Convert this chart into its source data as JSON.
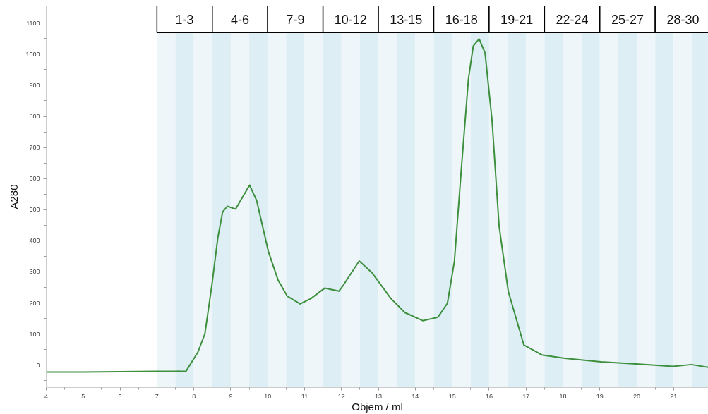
{
  "chart_data": {
    "type": "line",
    "xlabel": "Objem / ml",
    "ylabel": "A280",
    "xlim": [
      4,
      21.94
    ],
    "ylim": [
      -72,
      1155
    ],
    "xticks": [
      4,
      5,
      6,
      7,
      8,
      9,
      10,
      11,
      12,
      13,
      14,
      15,
      16,
      17,
      18,
      19,
      20,
      21
    ],
    "yticks": [
      0,
      100,
      200,
      300,
      400,
      500,
      600,
      700,
      800,
      900,
      1000,
      1100
    ],
    "grid": false,
    "marker": "none",
    "line_style": "solid",
    "series": [
      {
        "color": "#3d8f3d",
        "x": [
          4,
          5,
          6,
          7,
          7.5,
          7.79,
          8.11,
          8.3,
          8.49,
          8.65,
          8.78,
          8.91,
          9.13,
          9.51,
          9.7,
          10.02,
          10.28,
          10.53,
          10.88,
          11.17,
          11.55,
          11.93,
          12.06,
          12.48,
          12.83,
          13.34,
          13.72,
          14.2,
          14.61,
          14.87,
          15.06,
          15.25,
          15.44,
          15.57,
          15.73,
          15.89,
          16.08,
          16.27,
          16.52,
          16.94,
          17.43,
          18.05,
          19.03,
          20.13,
          20.98,
          21.48,
          21.94
        ],
        "values": [
          -22,
          -22,
          -21,
          -20,
          -20,
          -19,
          42,
          101,
          259,
          410,
          493,
          511,
          502,
          579,
          530,
          365,
          274,
          222,
          197,
          214,
          248,
          238,
          259,
          335,
          297,
          214,
          169,
          143,
          154,
          199,
          335,
          635,
          921,
          1026,
          1049,
          1004,
          786,
          447,
          237,
          65,
          33,
          22,
          11,
          3,
          -4,
          2,
          -7
        ]
      }
    ],
    "bands": [
      {
        "axis": "x",
        "from": 7,
        "to": 8.5,
        "label": "1-3",
        "color": "#ffffff"
      },
      {
        "axis": "x",
        "from": 8.5,
        "to": 10,
        "label": "4-6",
        "color": "#ffffff"
      },
      {
        "axis": "x",
        "from": 10,
        "to": 11.5,
        "label": "7-9",
        "color": "#ffffff"
      },
      {
        "axis": "x",
        "from": 11.5,
        "to": 13,
        "label": "10-12",
        "color": "#ffffff"
      },
      {
        "axis": "x",
        "from": 13,
        "to": 14.5,
        "label": "13-15",
        "color": "#ffffff"
      },
      {
        "axis": "x",
        "from": 14.5,
        "to": 16,
        "label": "16-18",
        "color": "#ffffff"
      },
      {
        "axis": "x",
        "from": 16,
        "to": 17.5,
        "label": "19-21",
        "color": "#ffffff"
      },
      {
        "axis": "x",
        "from": 17.5,
        "to": 19,
        "label": "22-24",
        "color": "#ffffff"
      },
      {
        "axis": "x",
        "from": 19,
        "to": 20.5,
        "label": "25-27",
        "color": "#ffffff"
      },
      {
        "axis": "x",
        "from": 20.5,
        "to": 22,
        "label": "28-30",
        "color": "#ffffff"
      },
      {
        "axis": "x",
        "from": 7,
        "to": 7.5,
        "color": "#eef6fa"
      },
      {
        "axis": "x",
        "from": 7.5,
        "to": 8,
        "color": "#ddeef5"
      },
      {
        "axis": "x",
        "from": 8,
        "to": 8.5,
        "color": "#eef6fa"
      },
      {
        "axis": "x",
        "from": 8.5,
        "to": 9,
        "color": "#ddeef5"
      },
      {
        "axis": "x",
        "from": 9,
        "to": 9.5,
        "color": "#eef6fa"
      },
      {
        "axis": "x",
        "from": 9.5,
        "to": 10,
        "color": "#ddeef5"
      },
      {
        "axis": "x",
        "from": 10,
        "to": 10.5,
        "color": "#eef6fa"
      },
      {
        "axis": "x",
        "from": 10.5,
        "to": 11,
        "color": "#ddeef5"
      },
      {
        "axis": "x",
        "from": 11,
        "to": 11.5,
        "color": "#eef6fa"
      },
      {
        "axis": "x",
        "from": 11.5,
        "to": 12,
        "color": "#ddeef5"
      },
      {
        "axis": "x",
        "from": 12,
        "to": 12.5,
        "color": "#eef6fa"
      },
      {
        "axis": "x",
        "from": 12.5,
        "to": 13,
        "color": "#ddeef5"
      },
      {
        "axis": "x",
        "from": 13,
        "to": 13.5,
        "color": "#eef6fa"
      },
      {
        "axis": "x",
        "from": 13.5,
        "to": 14,
        "color": "#ddeef5"
      },
      {
        "axis": "x",
        "from": 14,
        "to": 14.5,
        "color": "#eef6fa"
      },
      {
        "axis": "x",
        "from": 14.5,
        "to": 15,
        "color": "#ddeef5"
      },
      {
        "axis": "x",
        "from": 15,
        "to": 15.5,
        "color": "#eef6fa"
      },
      {
        "axis": "x",
        "from": 15.5,
        "to": 16,
        "color": "#ddeef5"
      },
      {
        "axis": "x",
        "from": 16,
        "to": 16.5,
        "color": "#eef6fa"
      },
      {
        "axis": "x",
        "from": 16.5,
        "to": 17,
        "color": "#ddeef5"
      },
      {
        "axis": "x",
        "from": 17,
        "to": 17.5,
        "color": "#eef6fa"
      },
      {
        "axis": "x",
        "from": 17.5,
        "to": 18,
        "color": "#ddeef5"
      },
      {
        "axis": "x",
        "from": 18,
        "to": 18.5,
        "color": "#eef6fa"
      },
      {
        "axis": "x",
        "from": 18.5,
        "to": 19,
        "color": "#ddeef5"
      },
      {
        "axis": "x",
        "from": 19,
        "to": 19.5,
        "color": "#eef6fa"
      },
      {
        "axis": "x",
        "from": 19.5,
        "to": 20,
        "color": "#ddeef5"
      },
      {
        "axis": "x",
        "from": 20,
        "to": 20.5,
        "color": "#eef6fa"
      },
      {
        "axis": "x",
        "from": 20.5,
        "to": 21,
        "color": "#ddeef5"
      },
      {
        "axis": "x",
        "from": 21,
        "to": 21.5,
        "color": "#eef6fa"
      },
      {
        "axis": "x",
        "from": 21.5,
        "to": 22,
        "color": "#ddeef5"
      }
    ]
  }
}
